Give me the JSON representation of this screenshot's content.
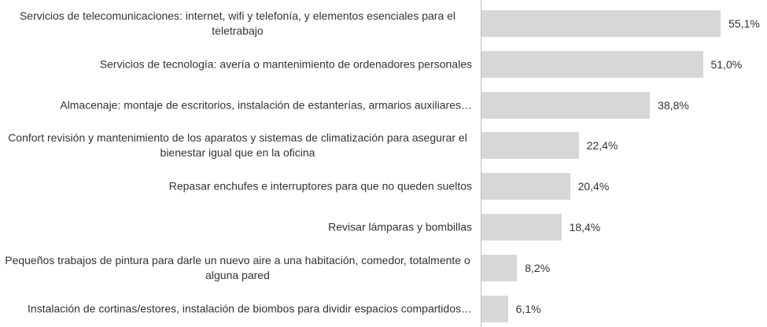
{
  "chart_data": {
    "type": "bar",
    "orientation": "horizontal",
    "color": "#d6d7d9",
    "categories": [
      "Servicios de telecomunicaciones: internet, wifi y telefonía, y elementos esenciales para el teletrabajo",
      "Servicios de tecnología: avería o mantenimiento de ordenadores personales",
      "Almacenaje: montaje de escritorios, instalación de estanterías, armarios auxiliares…",
      "Confort revisión y mantenimiento de los aparatos y sistemas de climatización para asegurar el bienestar igual que en la oficina",
      "Repasar enchufes e interruptores para que no queden sueltos",
      "Revisar lámparas y bombillas",
      "Pequeños trabajos de pintura para darle un nuevo aire a una habitación, comedor, totalmente o alguna pared",
      "Instalación de cortinas/estores, instalación de biombos para dividir espacios compartidos…"
    ],
    "values": [
      55.1,
      51.0,
      38.8,
      22.4,
      20.4,
      18.4,
      8.2,
      6.1
    ],
    "value_labels": [
      "55,1%",
      "51,0%",
      "38,8%",
      "22,4%",
      "20,4%",
      "18,4%",
      "8,2%",
      "6,1%"
    ]
  }
}
